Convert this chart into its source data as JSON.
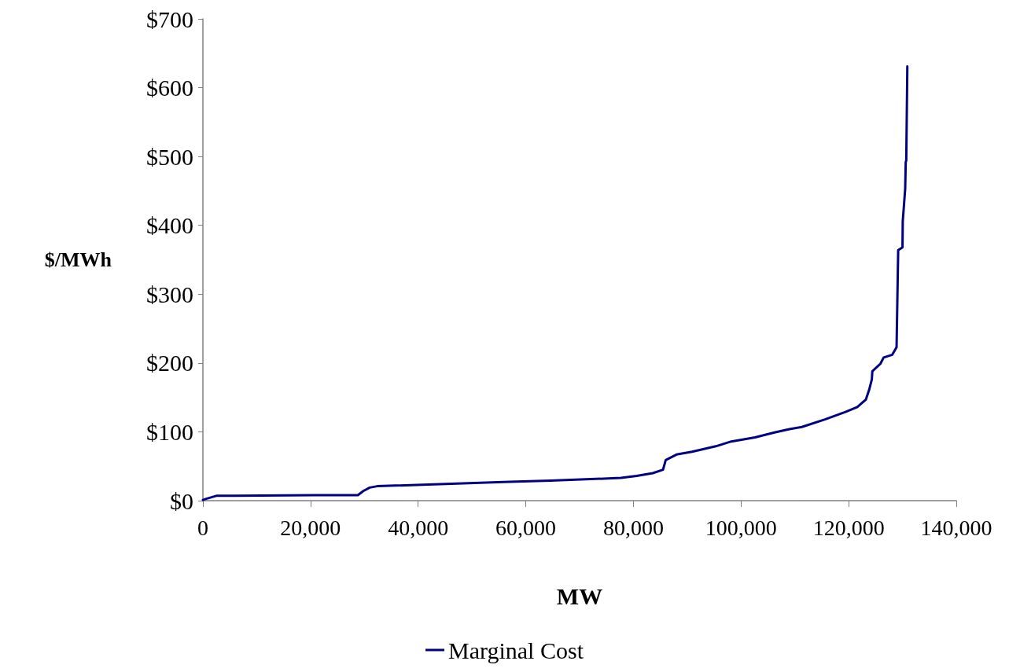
{
  "chart_data": {
    "type": "line",
    "xlabel": "MW",
    "ylabel": "$/MWh",
    "legend": "bottom",
    "grid": false,
    "marker": "none",
    "line_style": "solid",
    "xlim": [
      0,
      140000
    ],
    "ylim": [
      0,
      700
    ],
    "xticks": [
      0,
      {
        "value": 20000,
        "label": "20,000"
      },
      {
        "value": 40000,
        "label": "40,000"
      },
      {
        "value": 60000,
        "label": "60,000"
      },
      {
        "value": 80000,
        "label": "80,000"
      },
      {
        "value": 100000,
        "label": "100,000"
      },
      {
        "value": 120000,
        "label": "120,000"
      },
      {
        "value": 140000,
        "label": "140,000"
      }
    ],
    "yticks": [
      {
        "value": 0,
        "label": "$0"
      },
      {
        "value": 100,
        "label": "$100"
      },
      {
        "value": 200,
        "label": "$200"
      },
      {
        "value": 300,
        "label": "$300"
      },
      {
        "value": 400,
        "label": "$400"
      },
      {
        "value": 500,
        "label": "$500"
      },
      {
        "value": 600,
        "label": "$600"
      },
      {
        "value": 700,
        "label": "$700"
      }
    ],
    "series": [
      {
        "name": "Marginal Cost",
        "color": "#000080",
        "x": [
          0,
          730,
          2500,
          6000,
          20700,
          28800,
          29800,
          31000,
          32400,
          55800,
          64600,
          77700,
          80600,
          83600,
          85500,
          86000,
          88000,
          90900,
          95300,
          98200,
          102600,
          106200,
          109000,
          111300,
          115600,
          119400,
          121600,
          123200,
          123800,
          124300,
          124400,
          125900,
          126500,
          128100,
          128900,
          129200,
          130000,
          130050,
          130500,
          130600,
          130700,
          130900
        ],
        "values": [
          1,
          3,
          7,
          7,
          8,
          8,
          14,
          19,
          21,
          27,
          29,
          33,
          36,
          40,
          45,
          59,
          67,
          71,
          79,
          86,
          92,
          99,
          104,
          107,
          118,
          129,
          136,
          147,
          161,
          176,
          188,
          199,
          208,
          212,
          223,
          364,
          368,
          406,
          453,
          492,
          494,
          631
        ]
      }
    ]
  }
}
